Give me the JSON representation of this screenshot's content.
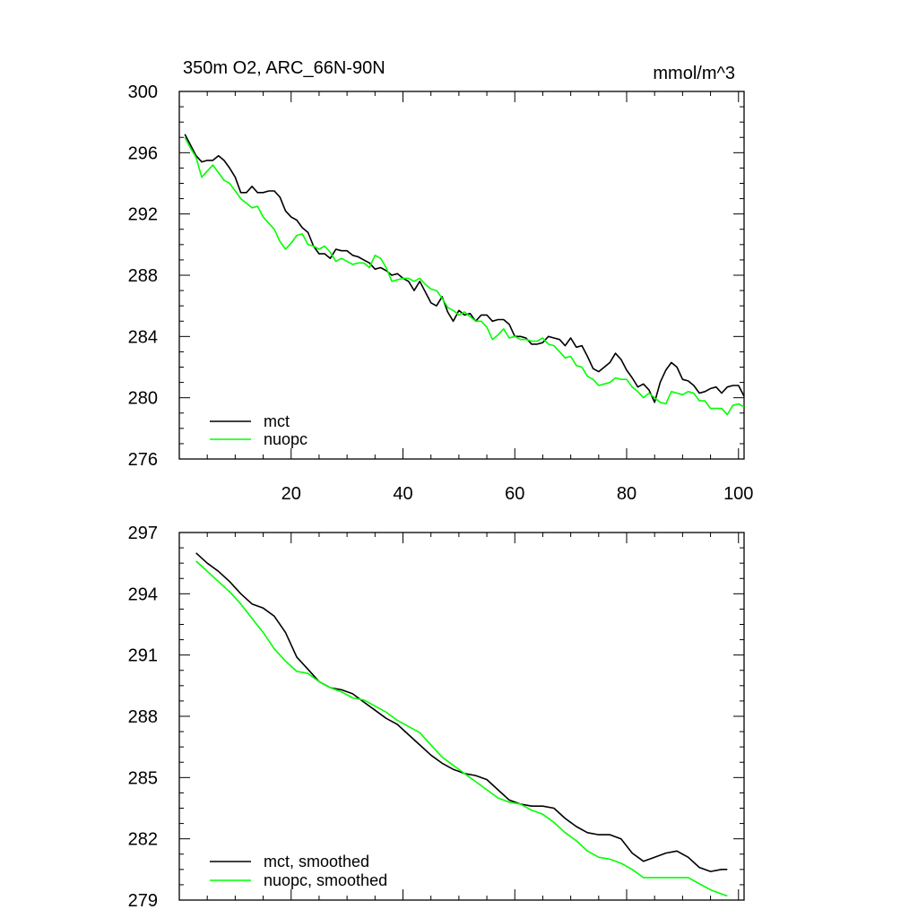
{
  "chart_data": [
    {
      "type": "line",
      "title": "350m O2, ARC_66N-90N",
      "units": "mmol/m^3",
      "xlim": [
        0,
        101
      ],
      "ylim": [
        276,
        300
      ],
      "x_ticks": [
        20,
        40,
        60,
        80,
        100
      ],
      "y_ticks": [
        276,
        280,
        284,
        288,
        292,
        296,
        300
      ],
      "x_tick_labels": [
        "20",
        "40",
        "60",
        "80",
        "100"
      ],
      "y_tick_labels": [
        "276",
        "280",
        "284",
        "288",
        "292",
        "296",
        "300"
      ],
      "legend_position": "bottom-left",
      "series": [
        {
          "name": "mct",
          "color": "#000000",
          "x": [
            1,
            2,
            3,
            4,
            5,
            6,
            7,
            8,
            9,
            10,
            11,
            12,
            13,
            14,
            15,
            16,
            17,
            18,
            19,
            20,
            21,
            22,
            23,
            24,
            25,
            26,
            27,
            28,
            29,
            30,
            31,
            32,
            33,
            34,
            35,
            36,
            37,
            38,
            39,
            40,
            41,
            42,
            43,
            44,
            45,
            46,
            47,
            48,
            49,
            50,
            51,
            52,
            53,
            54,
            55,
            56,
            57,
            58,
            59,
            60,
            61,
            62,
            63,
            64,
            65,
            66,
            67,
            68,
            69,
            70,
            71,
            72,
            73,
            74,
            75,
            76,
            77,
            78,
            79,
            80,
            81,
            82,
            83,
            84,
            85,
            86,
            87,
            88,
            89,
            90,
            91,
            92,
            93,
            94,
            95,
            96,
            97,
            98,
            99,
            100,
            101
          ],
          "y": [
            297.2,
            296.5,
            295.8,
            295.4,
            295.5,
            295.5,
            295.8,
            295.5,
            295.0,
            294.4,
            293.4,
            293.4,
            293.8,
            293.4,
            293.4,
            293.5,
            293.5,
            293.1,
            292.2,
            291.8,
            291.6,
            291.1,
            290.8,
            289.9,
            289.4,
            289.4,
            289.1,
            289.7,
            289.6,
            289.6,
            289.3,
            289.2,
            289.0,
            288.8,
            288.4,
            288.5,
            288.3,
            288.0,
            288.1,
            287.8,
            287.6,
            287.0,
            287.6,
            286.9,
            286.2,
            286.0,
            286.6,
            285.6,
            285.0,
            285.7,
            285.4,
            285.5,
            285.0,
            285.4,
            285.4,
            285.0,
            285.1,
            285.1,
            284.8,
            284.0,
            284.0,
            283.9,
            283.5,
            283.5,
            283.6,
            284.0,
            283.9,
            283.8,
            283.4,
            283.9,
            283.3,
            283.4,
            282.7,
            281.9,
            281.7,
            282.0,
            282.3,
            282.9,
            282.5,
            281.8,
            281.3,
            280.7,
            280.9,
            280.5,
            279.7,
            281.0,
            281.8,
            282.3,
            282.0,
            281.2,
            281.1,
            280.8,
            280.3,
            280.4,
            280.6,
            280.7,
            280.3,
            280.7,
            280.8,
            280.8,
            280.1
          ]
        },
        {
          "name": "nuopc",
          "color": "#00ff00",
          "x": [
            1,
            2,
            3,
            4,
            5,
            6,
            7,
            8,
            9,
            10,
            11,
            12,
            13,
            14,
            15,
            16,
            17,
            18,
            19,
            20,
            21,
            22,
            23,
            24,
            25,
            26,
            27,
            28,
            29,
            30,
            31,
            32,
            33,
            34,
            35,
            36,
            37,
            38,
            39,
            40,
            41,
            42,
            43,
            44,
            45,
            46,
            47,
            48,
            49,
            50,
            51,
            52,
            53,
            54,
            55,
            56,
            57,
            58,
            59,
            60,
            61,
            62,
            63,
            64,
            65,
            66,
            67,
            68,
            69,
            70,
            71,
            72,
            73,
            74,
            75,
            76,
            77,
            78,
            79,
            80,
            81,
            82,
            83,
            84,
            85,
            86,
            87,
            88,
            89,
            90,
            91,
            92,
            93,
            94,
            95,
            96,
            97,
            98,
            99,
            100,
            101
          ],
          "y": [
            297.0,
            296.3,
            295.7,
            294.4,
            294.8,
            295.2,
            294.7,
            294.2,
            294.0,
            293.5,
            293.0,
            292.7,
            292.4,
            292.5,
            291.8,
            291.4,
            291.0,
            290.2,
            289.7,
            290.1,
            290.6,
            290.7,
            290.0,
            289.9,
            289.7,
            289.9,
            289.5,
            288.9,
            289.1,
            288.9,
            288.7,
            288.8,
            288.8,
            288.5,
            289.3,
            289.1,
            288.5,
            287.6,
            287.7,
            287.8,
            287.8,
            287.6,
            287.8,
            287.4,
            287.1,
            287.0,
            286.5,
            285.9,
            285.7,
            285.4,
            285.6,
            285.3,
            285.0,
            285.0,
            284.6,
            283.8,
            284.1,
            284.5,
            283.9,
            284.0,
            283.8,
            283.8,
            283.7,
            283.7,
            283.9,
            283.5,
            283.4,
            283.0,
            282.6,
            282.7,
            282.1,
            282.0,
            281.4,
            281.2,
            280.8,
            280.9,
            281.0,
            281.3,
            281.2,
            281.2,
            280.7,
            280.4,
            280.0,
            280.3,
            280.0,
            279.7,
            279.6,
            280.4,
            280.3,
            280.2,
            280.4,
            280.3,
            279.8,
            279.8,
            279.3,
            279.3,
            279.3,
            278.9,
            279.5,
            279.6,
            279.4
          ]
        }
      ]
    },
    {
      "type": "line",
      "title": "",
      "xlim": [
        0,
        101
      ],
      "ylim": [
        279,
        297
      ],
      "y_ticks": [
        279,
        282,
        285,
        288,
        291,
        294,
        297
      ],
      "y_tick_labels": [
        "279",
        "282",
        "285",
        "288",
        "291",
        "294",
        "297"
      ],
      "x_ticks": [
        20,
        40,
        60,
        80,
        100
      ],
      "legend_position": "bottom-left",
      "series": [
        {
          "name": "mct, smoothed",
          "color": "#000000",
          "x": [
            3,
            5,
            7,
            9,
            11,
            13,
            15,
            17,
            19,
            21,
            23,
            25,
            27,
            29,
            31,
            33,
            35,
            37,
            39,
            41,
            43,
            45,
            47,
            49,
            51,
            53,
            55,
            57,
            59,
            61,
            63,
            65,
            67,
            69,
            71,
            73,
            75,
            77,
            79,
            81,
            83,
            85,
            87,
            89,
            91,
            93,
            95,
            97,
            98
          ],
          "y": [
            296.0,
            295.5,
            295.1,
            294.6,
            294.0,
            293.5,
            293.3,
            292.9,
            292.1,
            290.9,
            290.3,
            289.7,
            289.4,
            289.3,
            289.1,
            288.7,
            288.3,
            287.9,
            287.6,
            287.1,
            286.6,
            286.1,
            285.7,
            285.4,
            285.2,
            285.1,
            284.9,
            284.4,
            283.9,
            283.7,
            283.6,
            283.6,
            283.5,
            283.0,
            282.6,
            282.3,
            282.2,
            282.2,
            282.0,
            281.3,
            280.9,
            281.1,
            281.3,
            281.4,
            281.1,
            280.6,
            280.4,
            280.5,
            280.5
          ]
        },
        {
          "name": "nuopc, smoothed",
          "color": "#00ff00",
          "x": [
            3,
            5,
            7,
            9,
            11,
            13,
            15,
            17,
            19,
            21,
            23,
            25,
            27,
            29,
            31,
            33,
            35,
            37,
            39,
            41,
            43,
            45,
            47,
            49,
            51,
            53,
            55,
            57,
            59,
            61,
            63,
            65,
            67,
            69,
            71,
            73,
            75,
            77,
            79,
            81,
            83,
            85,
            87,
            89,
            91,
            93,
            95,
            97,
            98
          ],
          "y": [
            295.6,
            295.1,
            294.6,
            294.1,
            293.5,
            292.8,
            292.1,
            291.3,
            290.7,
            290.2,
            290.1,
            289.7,
            289.4,
            289.2,
            288.9,
            288.8,
            288.5,
            288.2,
            287.8,
            287.5,
            287.2,
            286.6,
            286.0,
            285.6,
            285.2,
            284.8,
            284.4,
            284.0,
            283.8,
            283.7,
            283.4,
            283.2,
            282.8,
            282.3,
            281.9,
            281.4,
            281.1,
            281.0,
            280.8,
            280.5,
            280.1,
            280.1,
            280.1,
            280.1,
            280.1,
            279.8,
            279.5,
            279.3,
            279.2
          ]
        }
      ]
    }
  ]
}
